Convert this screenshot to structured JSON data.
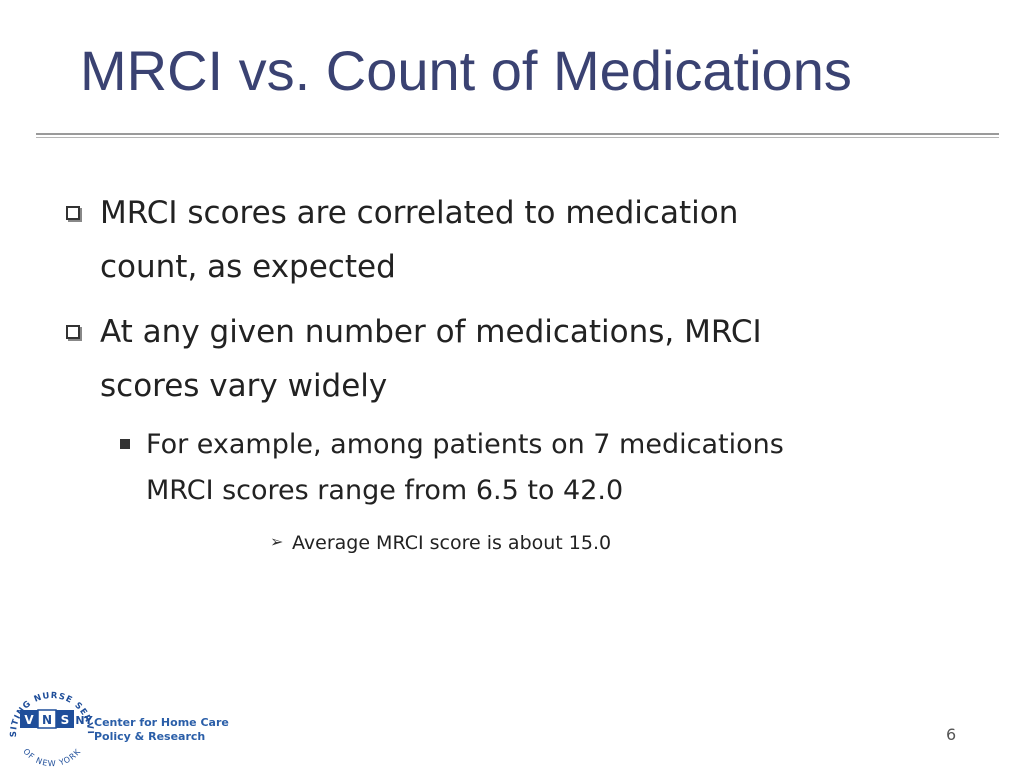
{
  "slide": {
    "title": "MRCI vs. Count of Medications",
    "bullets": [
      {
        "line1": "MRCI scores are correlated to medication",
        "line2": "count, as expected"
      },
      {
        "line1": "At any given number of medications, MRCI",
        "line2": "scores vary widely"
      }
    ],
    "sub_bullet": {
      "line1": "For example, among patients on 7 medications",
      "line2": "MRCI scores range from 6.5 to 42.0"
    },
    "sub_sub_bullet": "Average MRCI score is about 15.0",
    "page_number": "6"
  },
  "footer": {
    "logo": {
      "arc_text": "VISITING NURSE SERVICE",
      "bottom_text": "OF NEW YORK",
      "letters": [
        "V",
        "N",
        "S",
        "NY"
      ]
    },
    "org_line1": "Center for Home Care",
    "org_line2": "Policy & Research"
  },
  "colors": {
    "title": "#3a4272",
    "logo_blue": "#1f4e9a",
    "org_text": "#2a5ea8"
  }
}
